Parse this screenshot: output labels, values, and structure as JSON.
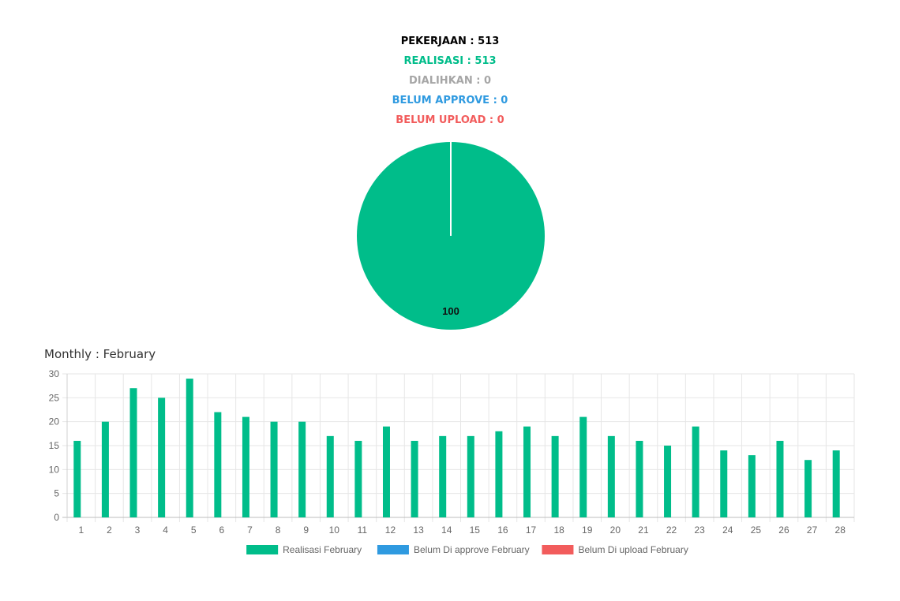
{
  "summary": {
    "pekerjaan": "PEKERJAAN : 513",
    "realisasi": "REALISASI : 513",
    "dialihkan": "DIALIHKAN : 0",
    "belum_approve": "BELUM APPROVE : 0",
    "belum_upload": "BELUM UPLOAD : 0"
  },
  "colors": {
    "pekerjaan": "#000000",
    "realisasi": "#00bd8a",
    "dialihkan": "#a6a6a6",
    "belum_approve": "#2f9ae0",
    "belum_upload": "#f25c5c"
  },
  "monthly_title": "Monthly : February",
  "chart_data": [
    {
      "type": "pie",
      "values": [
        100
      ],
      "data_labels": [
        "100"
      ],
      "colors": [
        "#00bd8a"
      ]
    },
    {
      "type": "bar",
      "categories": [
        "1",
        "2",
        "3",
        "4",
        "5",
        "6",
        "7",
        "8",
        "9",
        "10",
        "11",
        "12",
        "13",
        "14",
        "15",
        "16",
        "17",
        "18",
        "19",
        "20",
        "21",
        "22",
        "23",
        "24",
        "25",
        "26",
        "27",
        "28"
      ],
      "series": [
        {
          "name": "Realisasi February",
          "color": "#00bd8a",
          "values": [
            16,
            20,
            27,
            25,
            29,
            22,
            21,
            20,
            20,
            17,
            16,
            19,
            16,
            17,
            17,
            18,
            19,
            17,
            21,
            17,
            16,
            15,
            19,
            14,
            13,
            16,
            12,
            14
          ]
        },
        {
          "name": "Belum Di approve February",
          "color": "#2f9ae0",
          "values": [
            0,
            0,
            0,
            0,
            0,
            0,
            0,
            0,
            0,
            0,
            0,
            0,
            0,
            0,
            0,
            0,
            0,
            0,
            0,
            0,
            0,
            0,
            0,
            0,
            0,
            0,
            0,
            0
          ]
        },
        {
          "name": "Belum Di upload February",
          "color": "#f25c5c",
          "values": [
            0,
            0,
            0,
            0,
            0,
            0,
            0,
            0,
            0,
            0,
            0,
            0,
            0,
            0,
            0,
            0,
            0,
            0,
            0,
            0,
            0,
            0,
            0,
            0,
            0,
            0,
            0,
            0
          ]
        }
      ],
      "ylim": [
        0,
        30
      ],
      "yticks": [
        0,
        5,
        10,
        15,
        20,
        25,
        30
      ],
      "grid": true,
      "legend": "bottom"
    }
  ]
}
